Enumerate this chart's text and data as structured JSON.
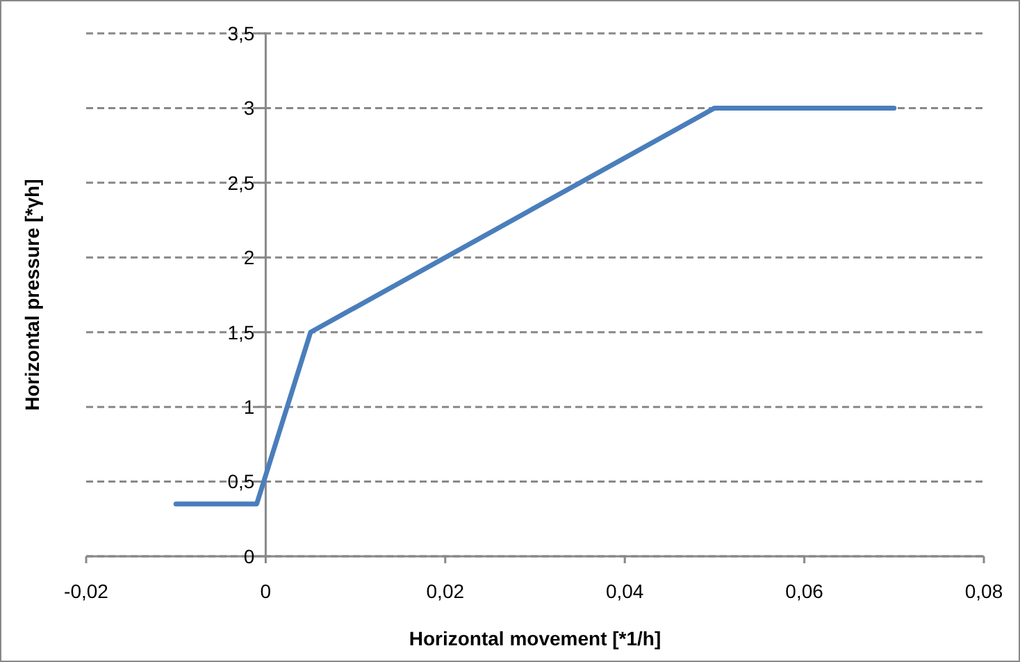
{
  "chart_data": {
    "type": "line",
    "xlabel": "Horizontal movement [*1/h]",
    "ylabel": "Horizontal pressure [*γh]",
    "xlim": [
      -0.02,
      0.08
    ],
    "ylim": [
      0,
      3.5
    ],
    "xticks": [
      {
        "value": -0.02,
        "label": "-0,02"
      },
      0,
      {
        "value": 0.02,
        "label": "0,02"
      },
      {
        "value": 0.04,
        "label": "0,04"
      },
      {
        "value": 0.06,
        "label": "0,06"
      },
      {
        "value": 0.08,
        "label": "0,08"
      }
    ],
    "yticks": [
      0,
      {
        "value": 0.5,
        "label": "0,5"
      },
      1,
      {
        "value": 1.5,
        "label": "1,5"
      },
      2,
      {
        "value": 2.5,
        "label": "2,5"
      },
      3,
      {
        "value": 3.5,
        "label": "3,5"
      }
    ],
    "grid": "y",
    "line_style": "solid",
    "marker": "none",
    "series": [
      {
        "color": "#4a7ebb",
        "x": [
          -0.01,
          -0.001,
          0.005,
          0.05,
          0.07
        ],
        "values": [
          0.35,
          0.35,
          1.5,
          3,
          3
        ]
      }
    ]
  }
}
